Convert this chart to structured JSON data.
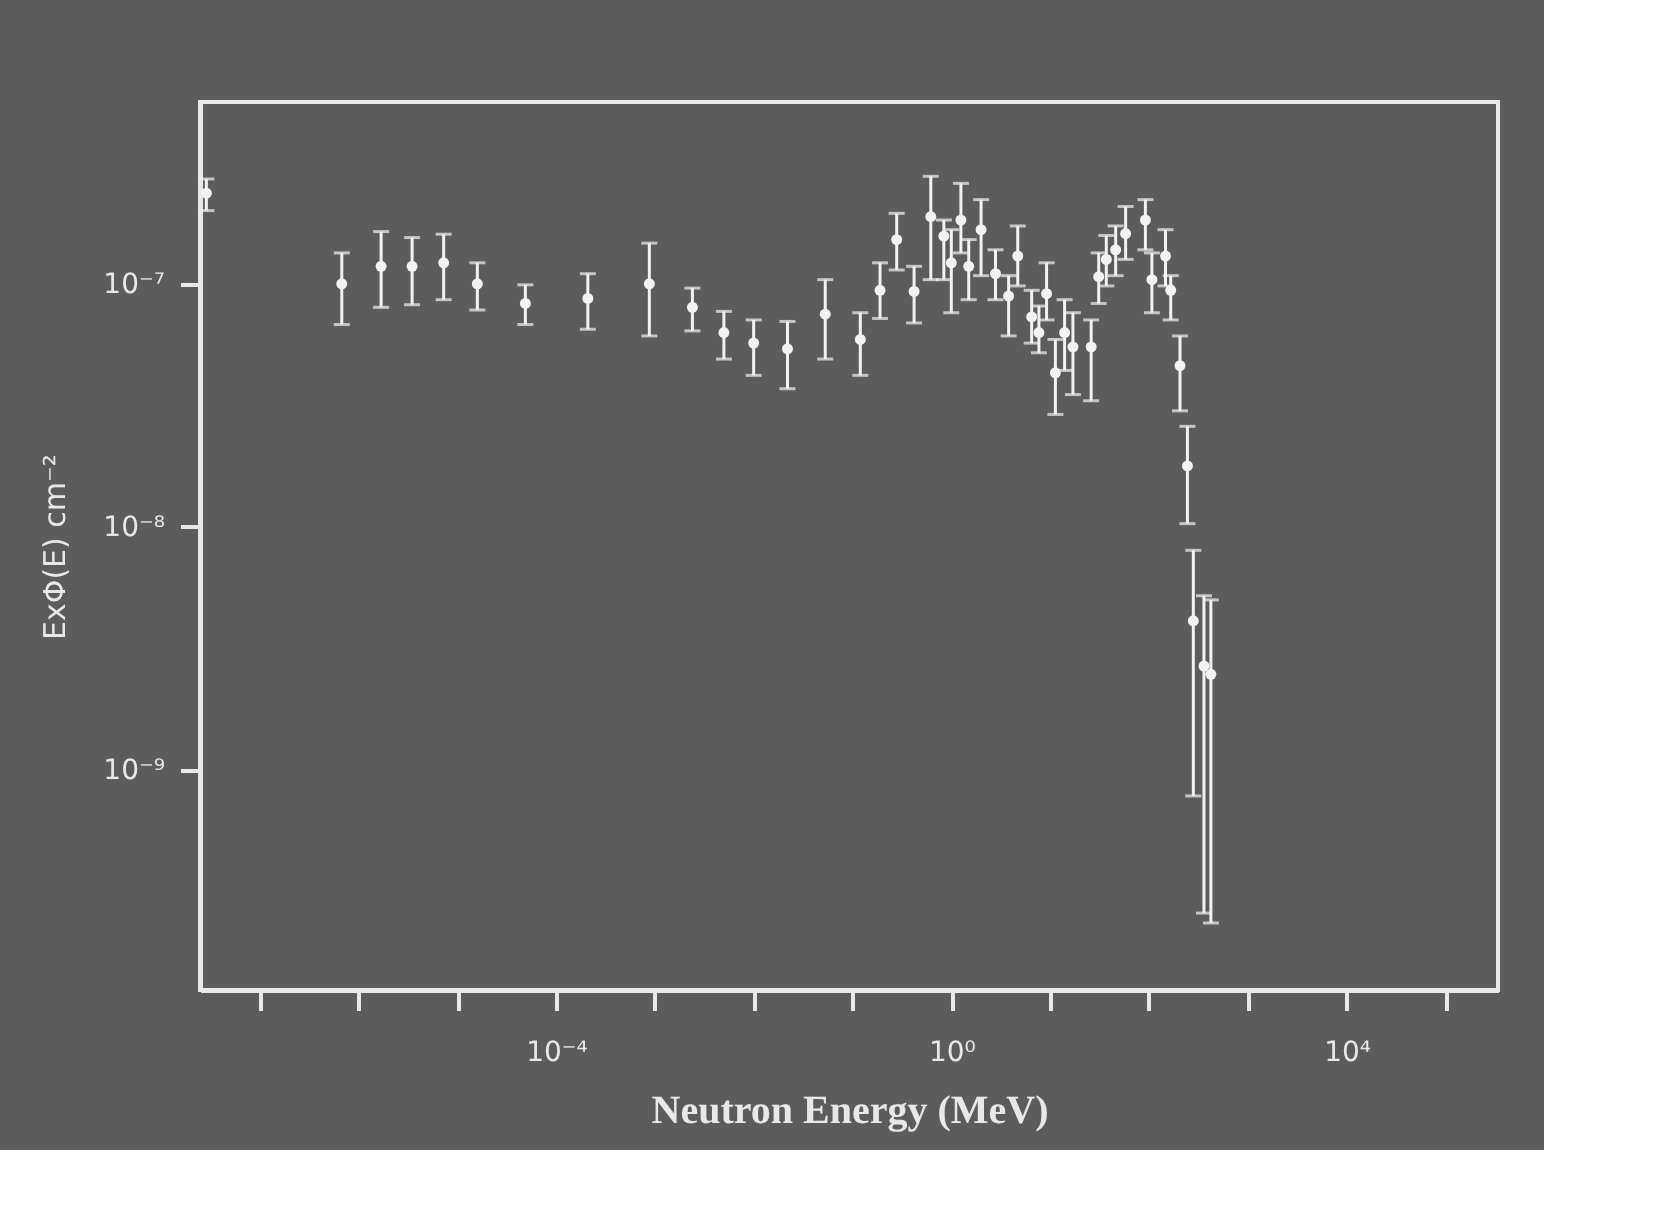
{
  "chart_data": {
    "type": "scatter",
    "xlabel": "Neutron Energy (MeV)",
    "ylabel": "ExΦ(E)  cm⁻²",
    "log": "xy",
    "marker": "circle",
    "xlim": [
      2.5e-08,
      340000.0
    ],
    "ylim": [
      1.24e-10,
      5.6e-07
    ],
    "xticks": [
      {
        "value": 1e-07,
        "label": null
      },
      {
        "value": 1e-06,
        "label": null
      },
      {
        "value": 1e-05,
        "label": null
      },
      {
        "value": 0.0001,
        "label": "10⁻⁴"
      },
      {
        "value": 0.001,
        "label": null
      },
      {
        "value": 0.01,
        "label": null
      },
      {
        "value": 0.1,
        "label": null
      },
      {
        "value": 1,
        "label": "10⁰"
      },
      {
        "value": 10,
        "label": null
      },
      {
        "value": 100,
        "label": null
      },
      {
        "value": 1000,
        "label": null
      },
      {
        "value": 10000.0,
        "label": "10⁴"
      },
      {
        "value": 100000.0,
        "label": null
      }
    ],
    "yticks": [
      {
        "value": 1e-09,
        "label": "10⁻⁹"
      },
      {
        "value": 1e-08,
        "label": "10⁻⁸"
      },
      {
        "value": 1e-07,
        "label": "10⁻⁷"
      }
    ],
    "series": [
      {
        "color": "#f2f2f2",
        "x": [
          2.9e-08,
          6.8e-07,
          1.7e-06,
          3.5e-06,
          7.3e-06,
          1.6e-05,
          4.9e-05,
          0.00021,
          0.00088,
          0.0024,
          0.005,
          0.01,
          0.022,
          0.053,
          0.12,
          0.19,
          0.28,
          0.42,
          0.62,
          0.84,
          1.0,
          1.25,
          1.5,
          2.0,
          2.8,
          3.8,
          4.7,
          6.5,
          7.7,
          9.2,
          11.3,
          14,
          17,
          23,
          26,
          31,
          37,
          46,
          58,
          79,
          92,
          107,
          147,
          166,
          206,
          245,
          281,
          360,
          423
        ],
        "values": [
          2.36e-07,
          1e-07,
          1.18e-07,
          1.18e-07,
          1.22e-07,
          1e-07,
          8.3e-08,
          8.7e-08,
          1e-07,
          8e-08,
          6.3e-08,
          5.7e-08,
          5.4e-08,
          7.5e-08,
          5.9e-08,
          9.4e-08,
          1.52e-07,
          9.3e-08,
          1.89e-07,
          1.57e-07,
          1.22e-07,
          1.83e-07,
          1.18e-07,
          1.67e-07,
          1.1e-07,
          8.9e-08,
          1.3e-07,
          7.3e-08,
          6.3e-08,
          9.1e-08,
          4.3e-08,
          6.3e-08,
          5.5e-08,
          null,
          5.5e-08,
          1.07e-07,
          1.26e-07,
          1.38e-07,
          1.61e-07,
          null,
          1.83e-07,
          1.04e-07,
          1.3e-07,
          9.4e-08,
          4.6e-08,
          1.78e-08,
          4.1e-09,
          2.67e-09,
          2.47e-09
        ],
        "errors": [
          [
            2e-07,
            2.7e-07
          ],
          [
            6.8e-08,
            1.34e-07
          ],
          [
            8e-08,
            1.64e-07
          ],
          [
            8.2e-08,
            1.55e-07
          ],
          [
            8.6e-08,
            1.6e-07
          ],
          [
            7.8e-08,
            1.22e-07
          ],
          [
            6.8e-08,
            9.9e-08
          ],
          [
            6.5e-08,
            1.1e-07
          ],
          [
            6.1e-08,
            1.47e-07
          ],
          [
            6.4e-08,
            9.6e-08
          ],
          [
            4.9e-08,
            7.7e-08
          ],
          [
            4.2e-08,
            7.1e-08
          ],
          [
            3.7e-08,
            7e-08
          ],
          [
            4.9e-08,
            1.04e-07
          ],
          [
            4.2e-08,
            7.6e-08
          ],
          [
            7.2e-08,
            1.22e-07
          ],
          [
            1.14e-07,
            1.95e-07
          ],
          [
            6.9e-08,
            1.18e-07
          ],
          [
            1.04e-07,
            2.77e-07
          ],
          [
            1.04e-07,
            1.83e-07
          ],
          [
            7.6e-08,
            1.67e-07
          ],
          [
            1.34e-07,
            2.59e-07
          ],
          [
            8.6e-08,
            1.52e-07
          ],
          [
            1.08e-07,
            2.22e-07
          ],
          [
            8.6e-08,
            1.38e-07
          ],
          [
            6.1e-08,
            1.08e-07
          ],
          [
            9.8e-08,
            1.73e-07
          ],
          [
            5.7e-08,
            9.4e-08
          ],
          [
            5.2e-08,
            8.1e-08
          ],
          [
            7.1e-08,
            1.22e-07
          ],
          [
            2.9e-08,
            5.9e-08
          ],
          [
            4.4e-08,
            8.6e-08
          ],
          [
            3.5e-08,
            7.6e-08
          ],
          null,
          [
            3.3e-08,
            7.1e-08
          ],
          [
            8.3e-08,
            1.34e-07
          ],
          [
            9.8e-08,
            1.58e-07
          ],
          [
            1.08e-07,
            1.73e-07
          ],
          [
            1.26e-07,
            2.08e-07
          ],
          null,
          [
            1.38e-07,
            2.22e-07
          ],
          [
            7.6e-08,
            1.34e-07
          ],
          [
            9.8e-08,
            1.67e-07
          ],
          [
            7.1e-08,
            1.08e-07
          ],
          [
            3e-08,
            6.1e-08
          ],
          [
            1.03e-08,
            2.59e-08
          ],
          [
            7.8e-10,
            8e-09
          ],
          [
            2.57e-10,
            5.2e-09
          ],
          [
            2.34e-10,
            5e-09
          ]
        ]
      }
    ]
  }
}
